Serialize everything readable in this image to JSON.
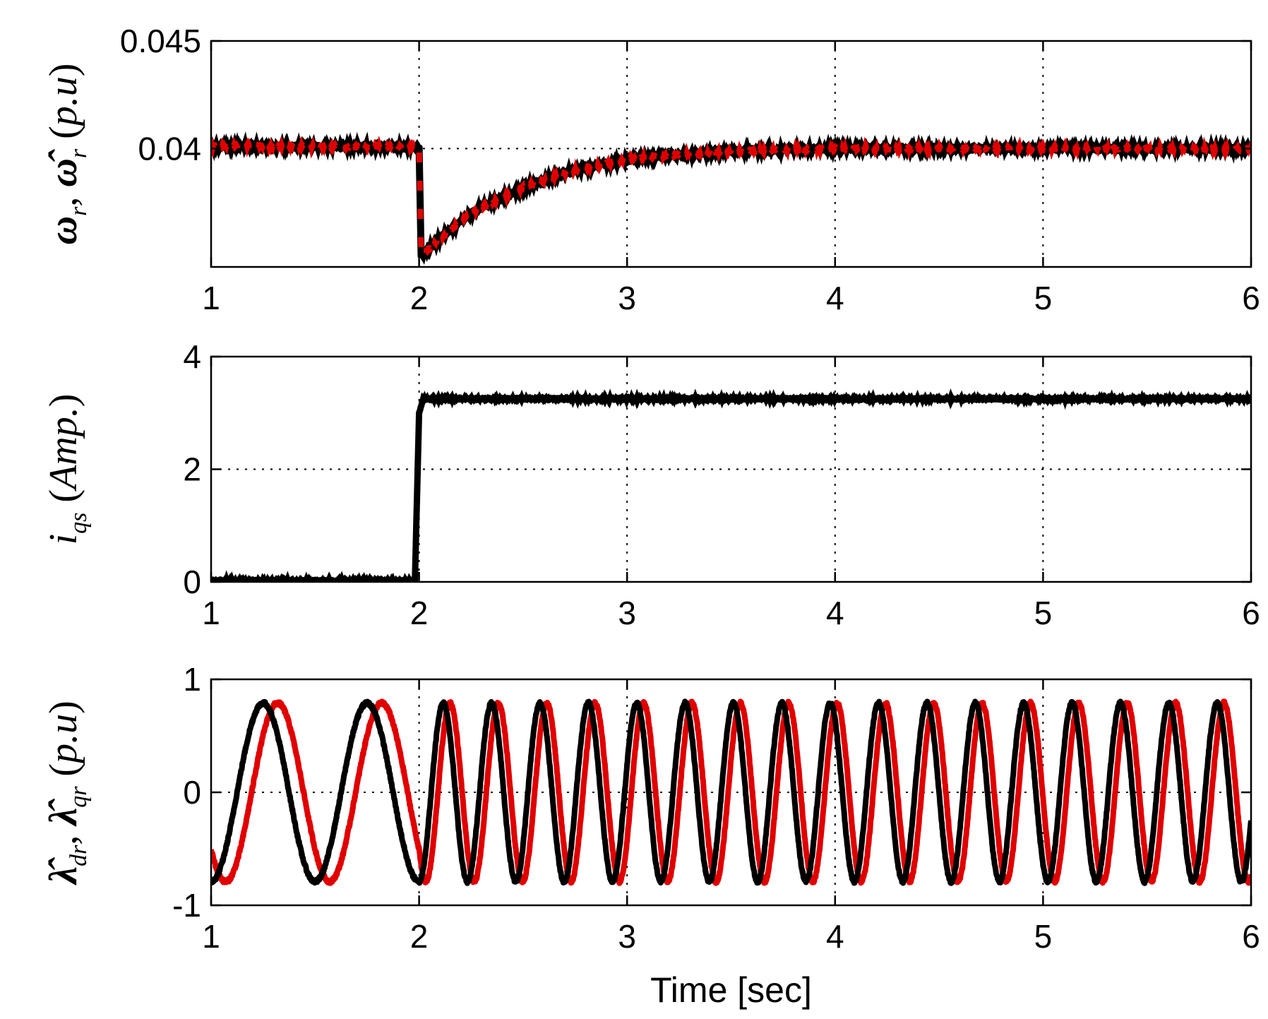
{
  "chart_data": [
    {
      "type": "line",
      "id": "speed",
      "ylabel_parts": [
        {
          "t": "ω",
          "cls": "bold"
        },
        {
          "t": "r",
          "cls": "ital",
          "sub": true
        },
        {
          "t": ", "
        },
        {
          "t": "ω̂",
          "cls": "bold"
        },
        {
          "t": "r",
          "cls": "ital",
          "sub": true
        },
        {
          "t": "  ("
        },
        {
          "t": "p.u",
          "cls": "ital"
        },
        {
          "t": ")"
        }
      ],
      "xlim": [
        1,
        6
      ],
      "ylim": [
        0.0345,
        0.045
      ],
      "xticks": [
        1,
        2,
        3,
        4,
        5,
        6
      ],
      "xtick_labels": [
        "1",
        "2",
        "3",
        "4",
        "5",
        "6"
      ],
      "yticks": [
        0.04,
        0.045
      ],
      "ytick_labels": [
        "0.04",
        "0.045"
      ],
      "grid": true,
      "series": [
        {
          "color": "#000000",
          "kind": "speed_black",
          "points": [
            [
              1,
              0.0401
            ],
            [
              2,
              0.0401
            ],
            [
              2.01,
              0.035
            ],
            [
              2.1,
              0.0358
            ],
            [
              2.25,
              0.037
            ],
            [
              2.5,
              0.0382
            ],
            [
              2.75,
              0.039
            ],
            [
              3.0,
              0.0395
            ],
            [
              3.5,
              0.0399
            ],
            [
              4.0,
              0.04
            ],
            [
              5.0,
              0.04
            ],
            [
              6.0,
              0.04
            ]
          ]
        },
        {
          "color": "#e00000",
          "kind": "speed_red",
          "points": [
            [
              1,
              0.0401
            ],
            [
              2,
              0.0401
            ],
            [
              2.01,
              0.035
            ],
            [
              2.1,
              0.0358
            ],
            [
              2.25,
              0.037
            ],
            [
              2.5,
              0.0382
            ],
            [
              2.75,
              0.039
            ],
            [
              3.0,
              0.0395
            ],
            [
              3.5,
              0.0399
            ],
            [
              4.0,
              0.04
            ],
            [
              5.0,
              0.04
            ],
            [
              6.0,
              0.04
            ]
          ]
        }
      ]
    },
    {
      "type": "line",
      "id": "current",
      "ylabel_parts": [
        {
          "t": "i",
          "cls": "ital"
        },
        {
          "t": "qs",
          "cls": "ital",
          "sub": true
        },
        {
          "t": "  ("
        },
        {
          "t": "Amp.",
          "cls": "ital"
        },
        {
          "t": ")"
        }
      ],
      "xlim": [
        1,
        6
      ],
      "ylim": [
        0,
        4
      ],
      "xticks": [
        1,
        2,
        3,
        4,
        5,
        6
      ],
      "xtick_labels": [
        "1",
        "2",
        "3",
        "4",
        "5",
        "6"
      ],
      "yticks": [
        0,
        2,
        4
      ],
      "ytick_labels": [
        "0",
        "2",
        "4"
      ],
      "grid": true,
      "series": [
        {
          "color": "#000000",
          "kind": "step",
          "points": [
            [
              1,
              0.02
            ],
            [
              1.98,
              0.02
            ],
            [
              2.0,
              3.0
            ],
            [
              2.02,
              3.25
            ],
            [
              6.0,
              3.25
            ]
          ]
        }
      ]
    },
    {
      "type": "line",
      "id": "flux",
      "ylabel_parts": [
        {
          "t": "λ̂",
          "cls": "bold"
        },
        {
          "t": "dr",
          "cls": "ital",
          "sub": true
        },
        {
          "t": ", "
        },
        {
          "t": "λ̂",
          "cls": "bold"
        },
        {
          "t": "qr",
          "cls": "ital",
          "sub": true
        },
        {
          "t": "  ("
        },
        {
          "t": "p.u",
          "cls": "ital"
        },
        {
          "t": ")"
        }
      ],
      "xlim": [
        1,
        6
      ],
      "ylim": [
        -1,
        1
      ],
      "xticks": [
        1,
        2,
        3,
        4,
        5,
        6
      ],
      "xtick_labels": [
        "1",
        "2",
        "3",
        "4",
        "5",
        "6"
      ],
      "yticks": [
        -1,
        0,
        1
      ],
      "ytick_labels": [
        "-1",
        "0",
        "1"
      ],
      "grid": true,
      "xlabel": "Time [sec]",
      "series": [
        {
          "color": "#e00000",
          "kind": "sine",
          "amplitude": 0.79,
          "freq_before": 2.0,
          "freq_after": 4.3,
          "switch_time": 2.0,
          "phase_offset": -0.28
        },
        {
          "color": "#000000",
          "kind": "sine",
          "amplitude": 0.79,
          "freq_before": 2.0,
          "freq_after": 4.3,
          "switch_time": 2.0,
          "phase_offset": 0.0
        }
      ]
    }
  ]
}
